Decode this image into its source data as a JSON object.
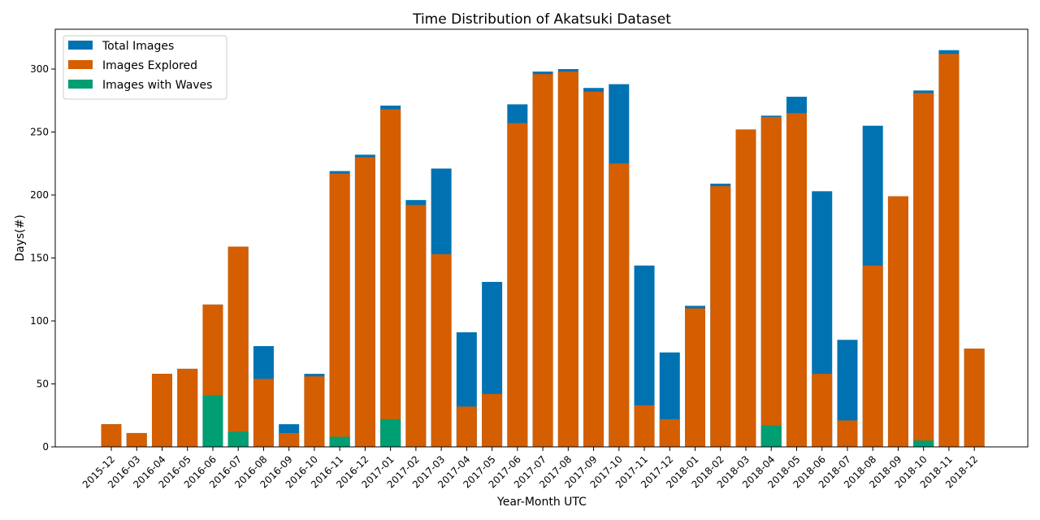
{
  "chart_data": {
    "type": "bar",
    "title": "Time Distribution of Akatsuki Dataset",
    "xlabel": "Year-Month UTC",
    "ylabel": "Days(#)",
    "ylim": [
      0,
      330
    ],
    "yticks": [
      0,
      50,
      100,
      150,
      200,
      250,
      300
    ],
    "legend_position": "top-left",
    "categories": [
      "2015-12",
      "2016-03",
      "2016-04",
      "2016-05",
      "2016-06",
      "2016-07",
      "2016-08",
      "2016-09",
      "2016-10",
      "2016-11",
      "2016-12",
      "2017-01",
      "2017-02",
      "2017-03",
      "2017-04",
      "2017-05",
      "2017-06",
      "2017-07",
      "2017-08",
      "2017-09",
      "2017-10",
      "2017-11",
      "2017-12",
      "2018-01",
      "2018-02",
      "2018-03",
      "2018-04",
      "2018-05",
      "2018-06",
      "2018-07",
      "2018-08",
      "2018-09",
      "2018-10",
      "2018-11",
      "2018-12"
    ],
    "series": [
      {
        "name": "Total Images",
        "color": "#0072b2",
        "values": [
          18,
          11,
          58,
          62,
          113,
          159,
          80,
          18,
          58,
          219,
          232,
          271,
          196,
          221,
          91,
          131,
          272,
          298,
          300,
          285,
          288,
          144,
          75,
          112,
          209,
          252,
          263,
          278,
          203,
          85,
          255,
          199,
          283,
          315,
          78
        ]
      },
      {
        "name": "Images Explored",
        "color": "#d55e00",
        "values": [
          18,
          11,
          58,
          62,
          113,
          159,
          54,
          11,
          56,
          217,
          230,
          268,
          192,
          153,
          32,
          42,
          257,
          296,
          298,
          282,
          225,
          33,
          22,
          110,
          207,
          252,
          262,
          265,
          58,
          21,
          144,
          199,
          281,
          312,
          78
        ]
      },
      {
        "name": "Images with Waves",
        "color": "#009e73",
        "values": [
          0,
          0,
          0,
          0,
          41,
          12,
          0,
          0,
          0,
          8,
          0,
          22,
          0,
          0,
          0,
          0,
          0,
          0,
          0,
          0,
          0,
          0,
          0,
          0,
          0,
          0,
          17,
          0,
          0,
          0,
          0,
          0,
          5,
          0,
          0
        ]
      }
    ]
  }
}
